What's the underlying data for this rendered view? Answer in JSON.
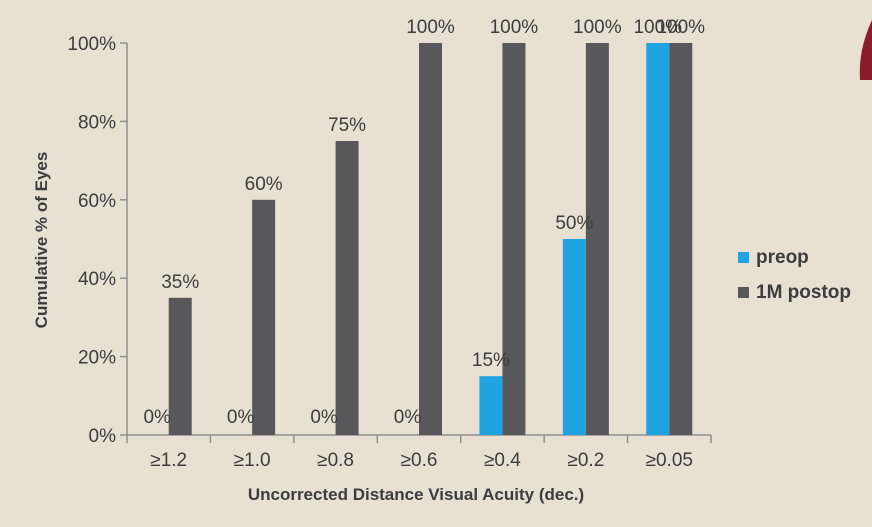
{
  "chart_data": {
    "type": "bar",
    "title": "",
    "xlabel": "Uncorrected Distance Visual Acuity (dec.)",
    "ylabel": "Cumulative % of Eyes",
    "categories": [
      "≥1.2",
      "≥1.0",
      "≥0.8",
      "≥0.6",
      "≥0.4",
      "≥0.2",
      "≥0.05"
    ],
    "ylim": [
      0,
      100
    ],
    "yticks": [
      "0%",
      "20%",
      "40%",
      "60%",
      "80%",
      "100%"
    ],
    "series": [
      {
        "name": "preop",
        "color": "#1ea5e1",
        "values": [
          0,
          0,
          0,
          0,
          15,
          50,
          100
        ],
        "labels": [
          "0%",
          "0%",
          "0%",
          "0%",
          "15%",
          "50%",
          "100%"
        ]
      },
      {
        "name": "1M postop",
        "color": "#58585a",
        "values": [
          35,
          60,
          75,
          100,
          100,
          100,
          100
        ],
        "labels": [
          "35%",
          "60%",
          "75%",
          "100%",
          "100%",
          "100%",
          "100%"
        ]
      }
    ],
    "grid": false,
    "legend": "right"
  },
  "colors": {
    "background": "#e8e0d2",
    "axis": "#8f8f8f",
    "corner_accent": "#8b1a2b"
  }
}
